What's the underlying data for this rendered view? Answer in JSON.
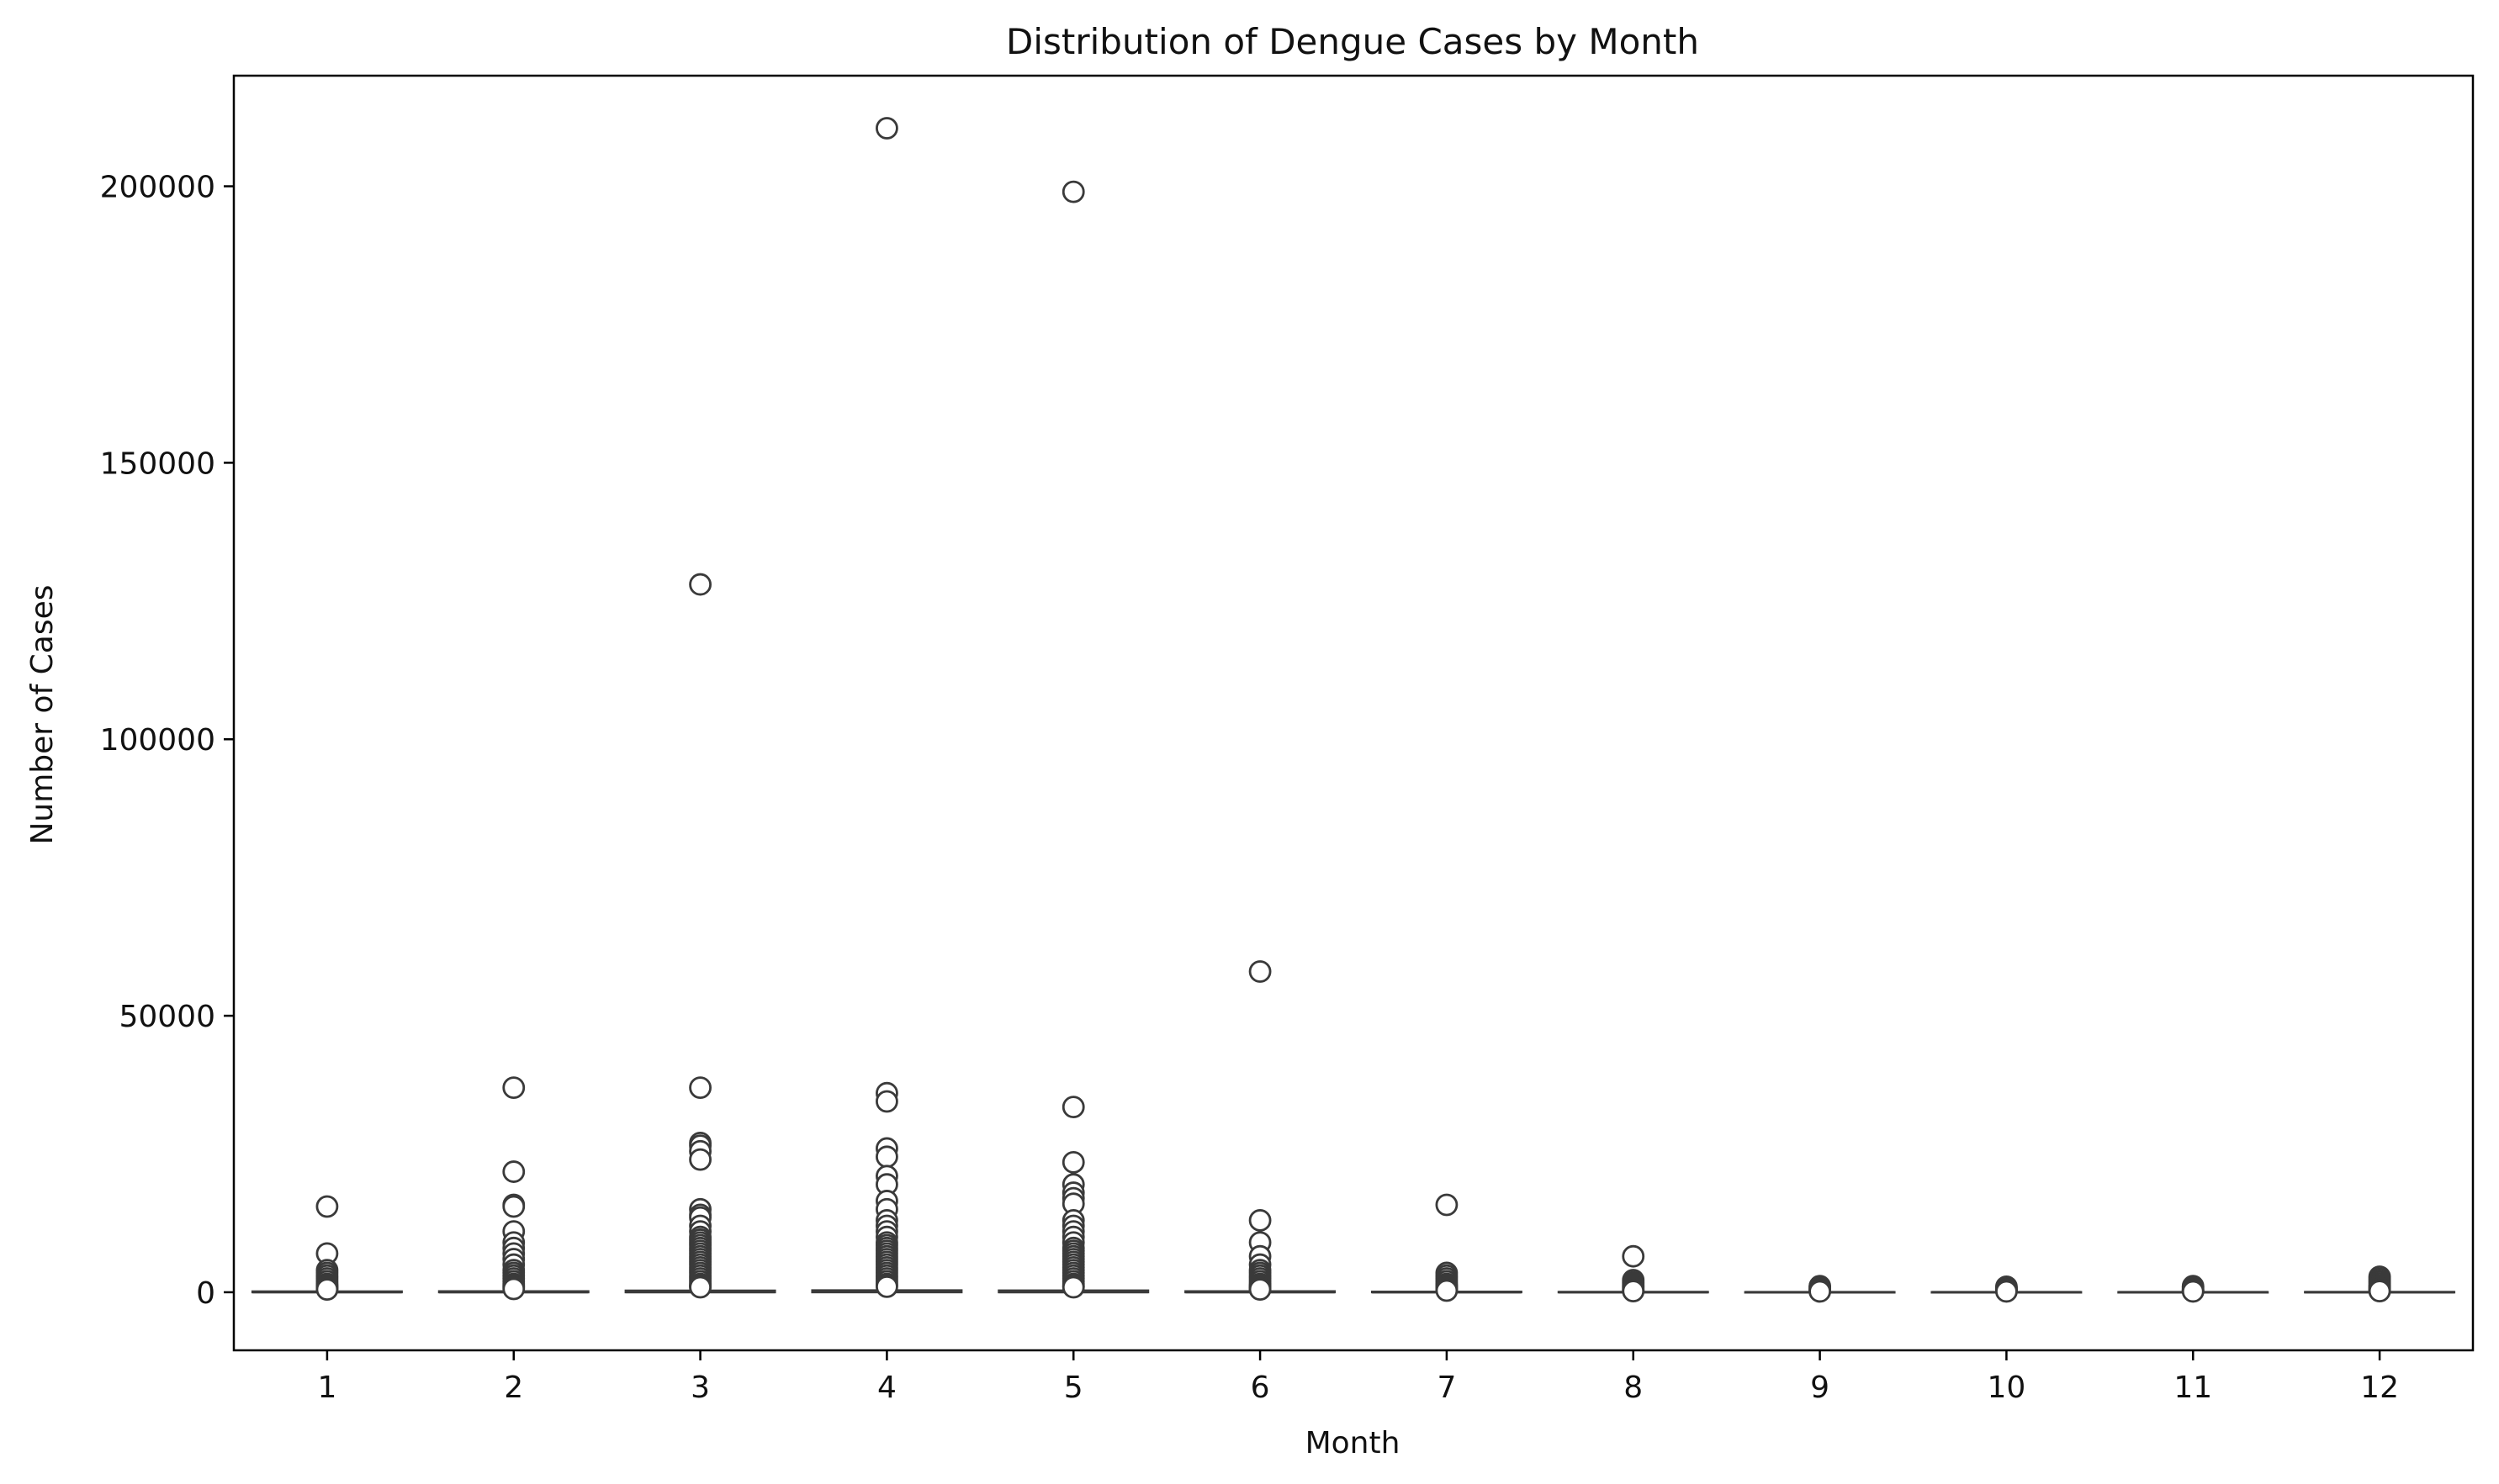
{
  "chart_data": {
    "type": "box",
    "title": "Distribution of Dengue Cases by Month",
    "xlabel": "Month",
    "ylabel": "Number of Cases",
    "categories": [
      "1",
      "2",
      "3",
      "4",
      "5",
      "6",
      "7",
      "8",
      "9",
      "10",
      "11",
      "12"
    ],
    "ylim": [
      -10500,
      220000
    ],
    "yticks": [
      0,
      50000,
      100000,
      150000,
      200000
    ],
    "grid": false,
    "legend": "none",
    "colors": {
      "box_edge": "#3a3a3a",
      "axis": "#000000",
      "outlier_face": "#ffffff"
    },
    "boxes": [
      {
        "month": "1",
        "median": 20,
        "q1": 0,
        "q3": 150,
        "whisker_low": 0,
        "whisker_high": 380
      },
      {
        "month": "2",
        "median": 30,
        "q1": 0,
        "q3": 180,
        "whisker_low": 0,
        "whisker_high": 450
      },
      {
        "month": "3",
        "median": 50,
        "q1": 0,
        "q3": 300,
        "whisker_low": 0,
        "whisker_high": 750
      },
      {
        "month": "4",
        "median": 60,
        "q1": 0,
        "q3": 350,
        "whisker_low": 0,
        "whisker_high": 870
      },
      {
        "month": "5",
        "median": 50,
        "q1": 0,
        "q3": 320,
        "whisker_low": 0,
        "whisker_high": 800
      },
      {
        "month": "6",
        "median": 30,
        "q1": 0,
        "q3": 180,
        "whisker_low": 0,
        "whisker_high": 450
      },
      {
        "month": "7",
        "median": 15,
        "q1": 0,
        "q3": 100,
        "whisker_low": 0,
        "whisker_high": 250
      },
      {
        "month": "8",
        "median": 10,
        "q1": 0,
        "q3": 60,
        "whisker_low": 0,
        "whisker_high": 150
      },
      {
        "month": "9",
        "median": 5,
        "q1": 0,
        "q3": 30,
        "whisker_low": 0,
        "whisker_high": 80
      },
      {
        "month": "10",
        "median": 5,
        "q1": 0,
        "q3": 30,
        "whisker_low": 0,
        "whisker_high": 80
      },
      {
        "month": "11",
        "median": 5,
        "q1": 0,
        "q3": 30,
        "whisker_low": 0,
        "whisker_high": 80
      },
      {
        "month": "12",
        "median": 10,
        "q1": 0,
        "q3": 50,
        "whisker_low": 0,
        "whisker_high": 120
      }
    ],
    "outliers": {
      "1": [
        15500,
        7000,
        4000,
        3500,
        3000,
        2500,
        2000,
        1500,
        1200,
        1000,
        800,
        600,
        500
      ],
      "2": [
        37000,
        21800,
        15800,
        15500,
        11000,
        9000,
        8000,
        7000,
        6000,
        5000,
        4000,
        3500,
        3000,
        2500,
        2000,
        1500,
        1200,
        1000,
        800,
        600
      ],
      "3": [
        128000,
        37000,
        27000,
        26500,
        25500,
        24000,
        15000,
        14000,
        13500,
        12000,
        11000,
        10000,
        9500,
        9000,
        8500,
        8000,
        7500,
        7000,
        6500,
        6000,
        5500,
        5000,
        4500,
        4000,
        3500,
        3000,
        2500,
        2000,
        1500,
        1200,
        1000,
        900
      ],
      "4": [
        210500,
        36000,
        34500,
        26000,
        24500,
        21000,
        19500,
        16500,
        15000,
        13000,
        12000,
        11000,
        10000,
        9000,
        8500,
        8000,
        7500,
        7000,
        6500,
        6000,
        5500,
        5000,
        4500,
        4000,
        3500,
        3000,
        2500,
        2000,
        1500,
        1200,
        1000
      ],
      "5": [
        199000,
        33500,
        23500,
        19500,
        18000,
        17000,
        16000,
        13000,
        12000,
        11000,
        10000,
        9000,
        8000,
        7500,
        7000,
        6500,
        6000,
        5500,
        5000,
        4500,
        4000,
        3500,
        3000,
        2500,
        2000,
        1500,
        1200,
        1000,
        900
      ],
      "6": [
        58000,
        13000,
        9000,
        6500,
        5000,
        4000,
        3500,
        3000,
        2500,
        2000,
        1500,
        1200,
        1000,
        800,
        600,
        500
      ],
      "7": [
        15800,
        3500,
        3000,
        2500,
        2000,
        1500,
        1200,
        1000,
        800,
        600,
        400,
        300
      ],
      "8": [
        6500,
        2200,
        1800,
        1500,
        1200,
        1000,
        800,
        600,
        400,
        300,
        200
      ],
      "9": [
        1100,
        900,
        700,
        500,
        400,
        300,
        200,
        150
      ],
      "10": [
        1000,
        800,
        600,
        500,
        400,
        300,
        200,
        150
      ],
      "11": [
        1100,
        900,
        700,
        500,
        400,
        300,
        200,
        150
      ],
      "12": [
        2800,
        2400,
        2000,
        1600,
        1200,
        1000,
        800,
        600,
        400,
        300,
        200
      ]
    }
  }
}
